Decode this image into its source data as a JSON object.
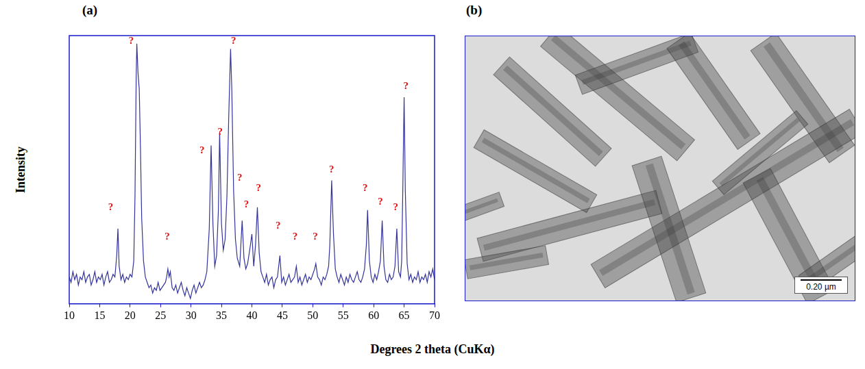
{
  "chart_data": {
    "type": "line",
    "panel_label": "(a)",
    "x_label": "Degrees 2 theta (CuKα)",
    "y_label": "Intensity",
    "color": "#33339a",
    "grid": false,
    "tick_labels": "x",
    "xlim": [
      10,
      70
    ],
    "xticks": [
      10,
      15,
      20,
      25,
      30,
      35,
      40,
      45,
      50,
      55,
      60,
      65,
      70
    ],
    "ylim": [
      0,
      100
    ],
    "x": [
      10,
      10.3,
      10.6,
      10.9,
      11.2,
      11.5,
      11.8,
      12.1,
      12.4,
      12.7,
      13,
      13.3,
      13.6,
      13.9,
      14.2,
      14.5,
      14.8,
      15.1,
      15.4,
      15.7,
      16,
      16.3,
      16.6,
      16.9,
      17.2,
      17.5,
      17.8,
      18,
      18.2,
      18.5,
      18.8,
      19.1,
      19.4,
      19.7,
      20,
      20.3,
      20.6,
      20.8,
      21,
      21.1,
      21.3,
      21.5,
      21.7,
      21.9,
      22.2,
      22.5,
      22.8,
      23.1,
      23.4,
      23.7,
      24,
      24.3,
      24.6,
      24.9,
      25.2,
      25.5,
      25.8,
      26,
      26.2,
      26.4,
      26.6,
      26.9,
      27.2,
      27.5,
      27.8,
      28.1,
      28.4,
      28.7,
      29,
      29.3,
      29.6,
      29.9,
      30.2,
      30.5,
      30.8,
      31.1,
      31.4,
      31.7,
      32,
      32.3,
      32.6,
      33,
      33.3,
      33.6,
      33.9,
      34.2,
      34.5,
      34.7,
      35,
      35.3,
      35.6,
      35.9,
      36.2,
      36.5,
      36.7,
      37,
      37.3,
      37.6,
      38,
      38.4,
      38.7,
      39,
      39.3,
      39.7,
      40,
      40.3,
      40.6,
      40.9,
      41.2,
      41.5,
      41.8,
      42.1,
      42.4,
      42.7,
      43,
      43.3,
      43.6,
      43.9,
      44.2,
      44.6,
      44.9,
      45.2,
      45.5,
      45.8,
      46.1,
      46.4,
      46.7,
      47,
      47.3,
      47.6,
      47.9,
      48.2,
      48.5,
      48.8,
      49.1,
      49.4,
      49.7,
      50,
      50.3,
      50.5,
      50.8,
      51.1,
      51.4,
      51.7,
      52,
      52.3,
      52.6,
      52.8,
      53.1,
      53.4,
      53.7,
      54,
      54.3,
      54.6,
      54.9,
      55.2,
      55.5,
      55.8,
      56.1,
      56.4,
      56.7,
      57,
      57.3,
      57.6,
      57.9,
      58.2,
      58.5,
      58.8,
      59,
      59.3,
      59.6,
      59.9,
      60.2,
      60.5,
      60.8,
      61.1,
      61.4,
      61.7,
      62,
      62.3,
      62.6,
      62.9,
      63.2,
      63.5,
      63.8,
      64.1,
      64.4,
      64.6,
      64.8,
      65,
      65.2,
      65.5,
      65.8,
      66.1,
      66.4,
      66.7,
      67,
      67.3,
      67.6,
      67.9,
      68.2,
      68.5,
      68.8,
      69.1,
      69.4,
      69.7,
      70
    ],
    "values": [
      10,
      8,
      12,
      9,
      11,
      7,
      10,
      9,
      12,
      8,
      10,
      11,
      7,
      9,
      12,
      8,
      10,
      9,
      11,
      7,
      10,
      12,
      8,
      9,
      11,
      10,
      18,
      28,
      14,
      9,
      11,
      8,
      10,
      9,
      11,
      10,
      16,
      40,
      85,
      97,
      86,
      80,
      58,
      32,
      16,
      10,
      8,
      6,
      7,
      4,
      6,
      5,
      8,
      5,
      6,
      7,
      8,
      10,
      13,
      10,
      12,
      6,
      5,
      7,
      4,
      6,
      8,
      5,
      3,
      6,
      4,
      2,
      5,
      7,
      4,
      6,
      8,
      6,
      7,
      9,
      12,
      28,
      59,
      30,
      14,
      18,
      35,
      64,
      30,
      20,
      24,
      40,
      70,
      95,
      80,
      42,
      24,
      17,
      14,
      31,
      17,
      13,
      15,
      21,
      26,
      14,
      22,
      36,
      19,
      12,
      10,
      8,
      11,
      7,
      9,
      10,
      6,
      9,
      10,
      18,
      8,
      10,
      7,
      9,
      11,
      8,
      9,
      10,
      14,
      8,
      10,
      7,
      9,
      11,
      8,
      10,
      9,
      11,
      13,
      15,
      10,
      9,
      7,
      10,
      9,
      11,
      14,
      22,
      46,
      26,
      13,
      10,
      8,
      11,
      9,
      7,
      10,
      8,
      11,
      9,
      8,
      10,
      12,
      9,
      8,
      10,
      13,
      22,
      35,
      16,
      10,
      8,
      11,
      9,
      12,
      16,
      31,
      14,
      9,
      8,
      11,
      9,
      10,
      14,
      28,
      12,
      10,
      16,
      45,
      77,
      42,
      15,
      9,
      11,
      8,
      10,
      9,
      12,
      8,
      10,
      9,
      11,
      8,
      12,
      10,
      13,
      9
    ],
    "annotations": [
      {
        "text": "?",
        "x": 20.2,
        "y": 98
      },
      {
        "text": "?",
        "x": 16.8,
        "y": 36
      },
      {
        "text": "?",
        "x": 26.1,
        "y": 25
      },
      {
        "text": "?",
        "x": 31.8,
        "y": 57
      },
      {
        "text": "?",
        "x": 34.8,
        "y": 64
      },
      {
        "text": "?",
        "x": 37.0,
        "y": 98
      },
      {
        "text": "?",
        "x": 38.0,
        "y": 47
      },
      {
        "text": "?",
        "x": 39.1,
        "y": 37
      },
      {
        "text": "?",
        "x": 41.1,
        "y": 43
      },
      {
        "text": "?",
        "x": 44.3,
        "y": 29
      },
      {
        "text": "?",
        "x": 47.1,
        "y": 25
      },
      {
        "text": "?",
        "x": 50.4,
        "y": 25
      },
      {
        "text": "?",
        "x": 53.1,
        "y": 50
      },
      {
        "text": "?",
        "x": 58.6,
        "y": 43
      },
      {
        "text": "?",
        "x": 61.1,
        "y": 38
      },
      {
        "text": "?",
        "x": 63.6,
        "y": 36
      },
      {
        "text": "?",
        "x": 65.3,
        "y": 81
      }
    ]
  },
  "image_panel": {
    "panel_label": "(b)",
    "scale_bar": "0.20 µm"
  }
}
